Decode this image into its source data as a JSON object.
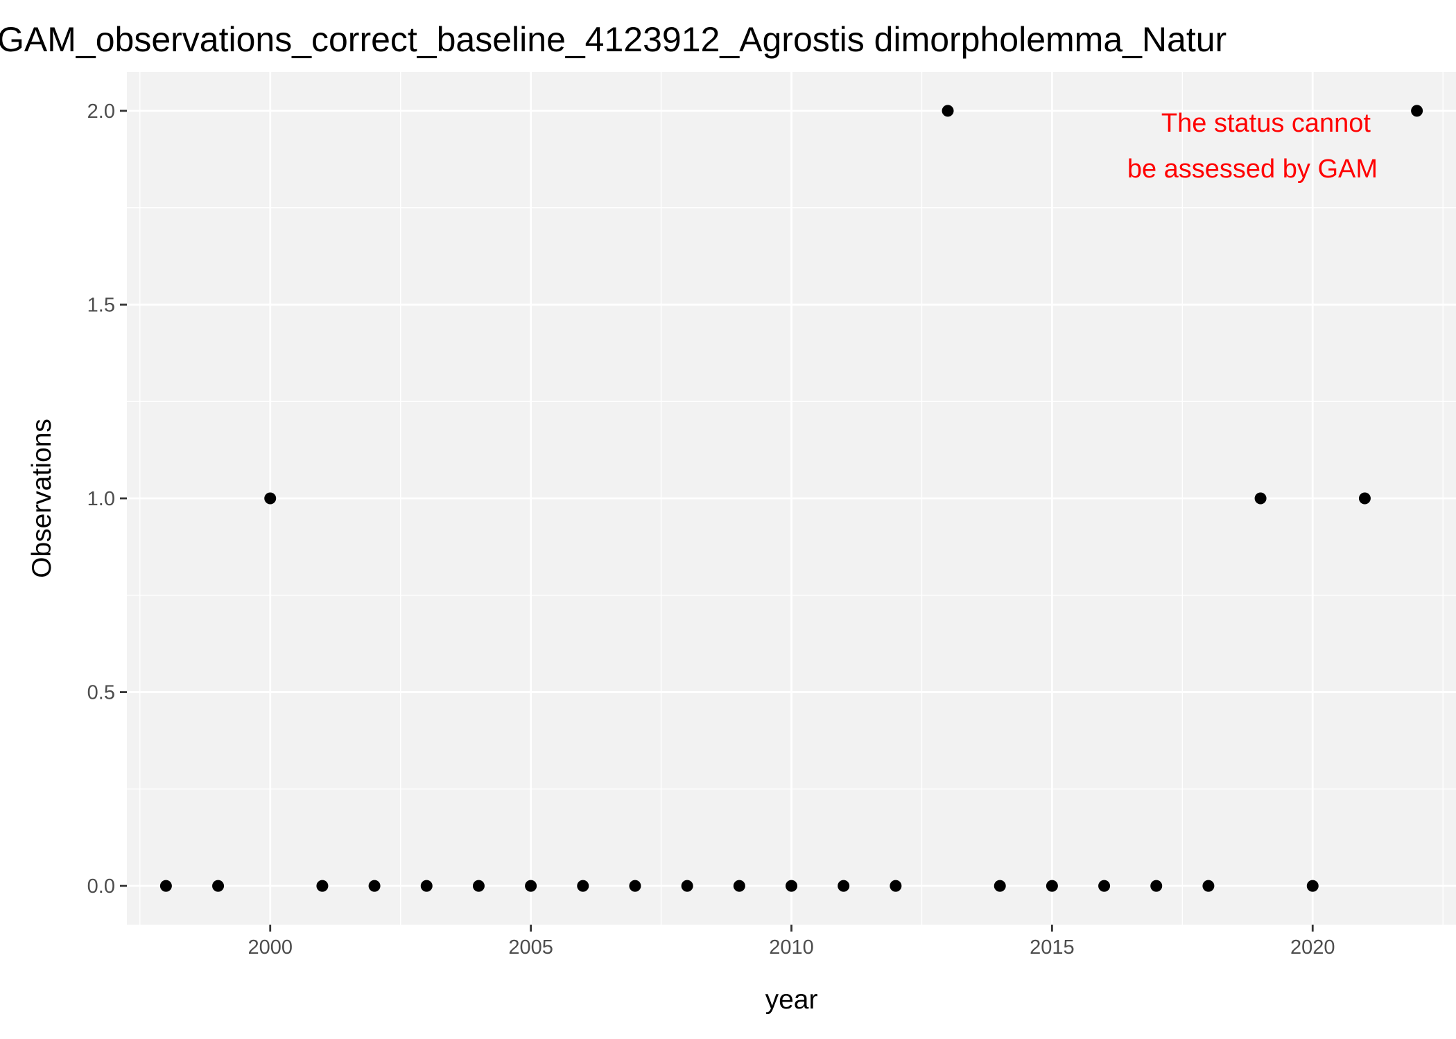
{
  "chart_data": {
    "type": "scatter",
    "title": "GAM_observations_correct_baseline_4123912_Agrostis dimorpholemma_Natur",
    "xlabel": "year",
    "ylabel": "Observations",
    "xlim": [
      1997.25,
      2022.75
    ],
    "ylim": [
      -0.1,
      2.1
    ],
    "x_ticks": [
      2000,
      2005,
      2010,
      2015,
      2020
    ],
    "x_tick_labels": [
      "2000",
      "2005",
      "2010",
      "2015",
      "2020"
    ],
    "y_ticks": [
      0,
      0.5,
      1,
      1.5,
      2
    ],
    "y_tick_labels": [
      "0.0",
      "0.5",
      "1.0",
      "1.5",
      "2.0"
    ],
    "grid": true,
    "legend": "none",
    "point_color": "#000000",
    "panel_background": "#f2f2f2",
    "grid_color": "#ffffff",
    "points": [
      {
        "x": 1998,
        "y": 0
      },
      {
        "x": 1999,
        "y": 0
      },
      {
        "x": 2000,
        "y": 1
      },
      {
        "x": 2001,
        "y": 0
      },
      {
        "x": 2002,
        "y": 0
      },
      {
        "x": 2003,
        "y": 0
      },
      {
        "x": 2004,
        "y": 0
      },
      {
        "x": 2005,
        "y": 0
      },
      {
        "x": 2006,
        "y": 0
      },
      {
        "x": 2007,
        "y": 0
      },
      {
        "x": 2008,
        "y": 0
      },
      {
        "x": 2009,
        "y": 0
      },
      {
        "x": 2010,
        "y": 0
      },
      {
        "x": 2011,
        "y": 0
      },
      {
        "x": 2012,
        "y": 0
      },
      {
        "x": 2013,
        "y": 2
      },
      {
        "x": 2014,
        "y": 0
      },
      {
        "x": 2015,
        "y": 0
      },
      {
        "x": 2016,
        "y": 0
      },
      {
        "x": 2017,
        "y": 0
      },
      {
        "x": 2018,
        "y": 0
      },
      {
        "x": 2019,
        "y": 1
      },
      {
        "x": 2020,
        "y": 0
      },
      {
        "x": 2021,
        "y": 1
      },
      {
        "x": 2022,
        "y": 2
      }
    ],
    "annotation": {
      "lines": [
        "The status cannot",
        "be assessed by GAM"
      ],
      "color": "#ff0000"
    }
  }
}
